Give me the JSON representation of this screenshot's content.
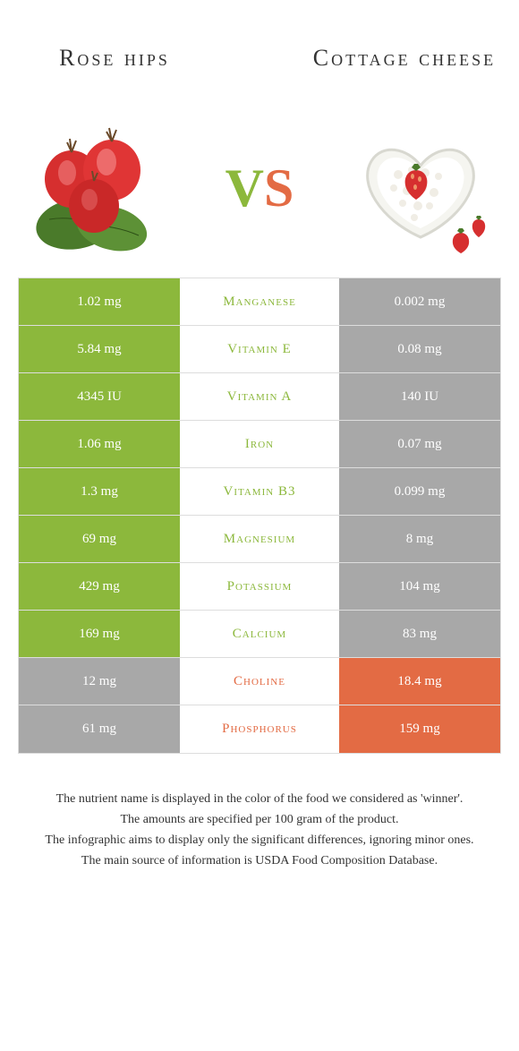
{
  "colors": {
    "left": "#8cb83c",
    "right": "#e36b44",
    "left_dim": "#a8a8a8",
    "right_dim": "#a8a8a8",
    "text": "#333333"
  },
  "header": {
    "left_title": "Rose hips",
    "right_title": "Cottage cheese",
    "vs_v": "V",
    "vs_s": "S"
  },
  "rows": [
    {
      "left": "1.02 mg",
      "mid": "Manganese",
      "right": "0.002 mg",
      "winner": "left"
    },
    {
      "left": "5.84 mg",
      "mid": "Vitamin E",
      "right": "0.08 mg",
      "winner": "left"
    },
    {
      "left": "4345 IU",
      "mid": "Vitamin A",
      "right": "140 IU",
      "winner": "left"
    },
    {
      "left": "1.06 mg",
      "mid": "Iron",
      "right": "0.07 mg",
      "winner": "left"
    },
    {
      "left": "1.3 mg",
      "mid": "Vitamin B3",
      "right": "0.099 mg",
      "winner": "left"
    },
    {
      "left": "69 mg",
      "mid": "Magnesium",
      "right": "8 mg",
      "winner": "left"
    },
    {
      "left": "429 mg",
      "mid": "Potassium",
      "right": "104 mg",
      "winner": "left"
    },
    {
      "left": "169 mg",
      "mid": "Calcium",
      "right": "83 mg",
      "winner": "left"
    },
    {
      "left": "12 mg",
      "mid": "Choline",
      "right": "18.4 mg",
      "winner": "right"
    },
    {
      "left": "61 mg",
      "mid": "Phosphorus",
      "right": "159 mg",
      "winner": "right"
    }
  ],
  "footnotes": [
    "The nutrient name is displayed in the color of the food we considered as 'winner'.",
    "The amounts are specified per 100 gram of the product.",
    "The infographic aims to display only the significant differences, ignoring minor ones.",
    "The main source of information is USDA Food Composition Database."
  ]
}
